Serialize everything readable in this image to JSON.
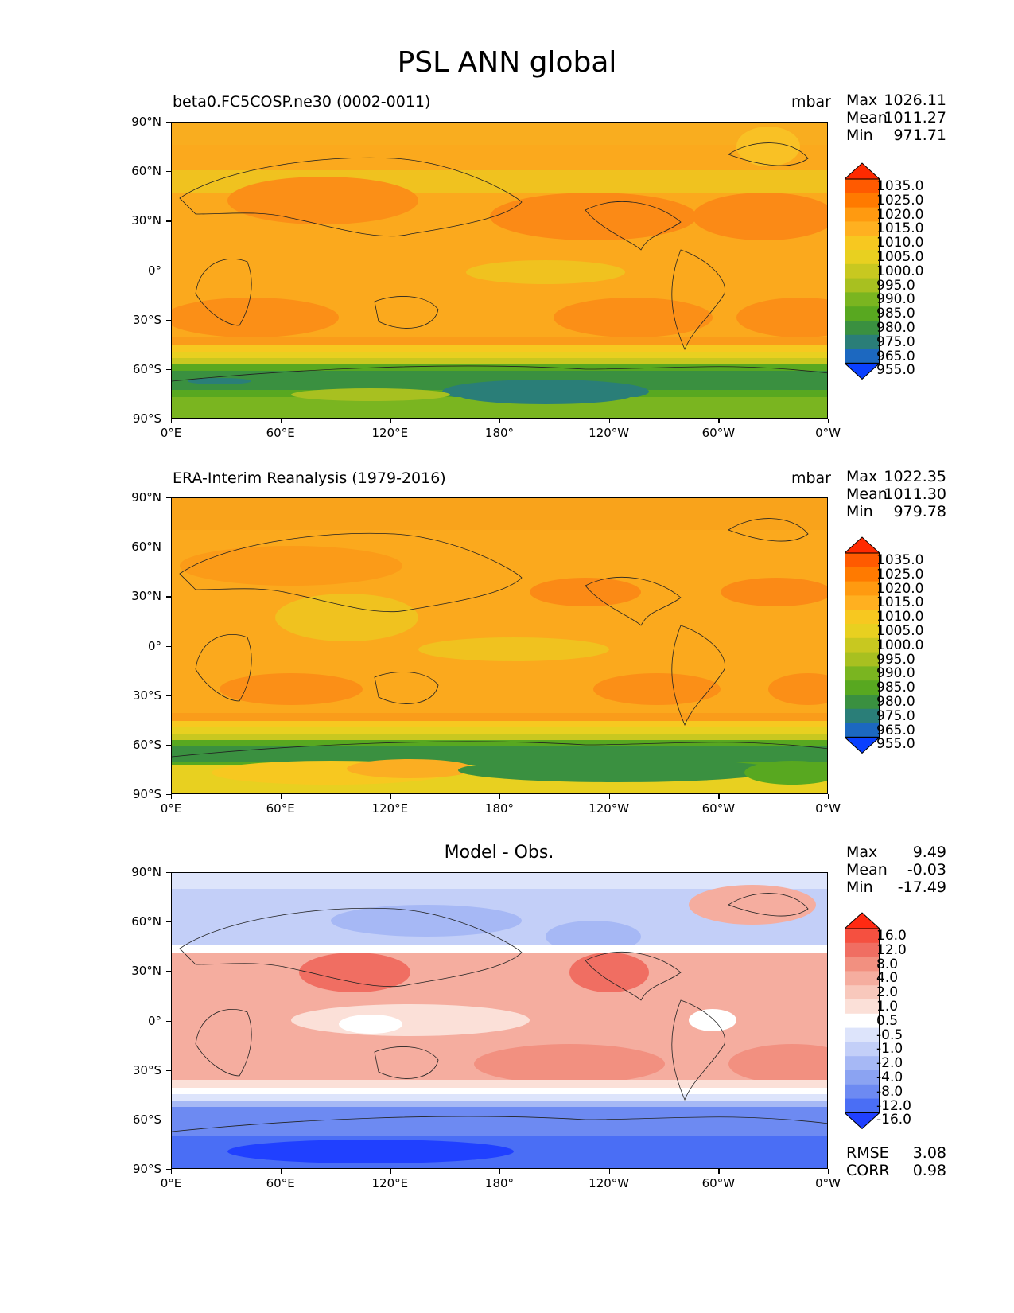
{
  "title": "PSL ANN global",
  "panels": [
    {
      "title_left": "beta0.FC5COSP.ne30 (0002-0011)",
      "title_center": "",
      "units": "mbar",
      "stats": [
        {
          "label": "Max",
          "value": "1026.11"
        },
        {
          "label": "Mean",
          "value": "1011.27"
        },
        {
          "label": "Min",
          "value": "971.71"
        }
      ]
    },
    {
      "title_left": "ERA-Interim Reanalysis (1979-2016)",
      "title_center": "",
      "units": "mbar",
      "stats": [
        {
          "label": "Max",
          "value": "1022.35"
        },
        {
          "label": "Mean",
          "value": "1011.30"
        },
        {
          "label": "Min",
          "value": "979.78"
        }
      ]
    },
    {
      "title_left": "",
      "title_center": "Model - Obs.",
      "units": "",
      "stats": [
        {
          "label": "Max",
          "value": "9.49"
        },
        {
          "label": "Mean",
          "value": "-0.03"
        },
        {
          "label": "Min",
          "value": "-17.49"
        }
      ],
      "extra_stats": [
        {
          "label": "RMSE",
          "value": "3.08"
        },
        {
          "label": "CORR",
          "value": "0.98"
        }
      ]
    }
  ],
  "chart_data": {
    "type": "heatmap",
    "x_ticks": [
      "0°E",
      "60°E",
      "120°E",
      "180°",
      "120°W",
      "60°W",
      "0°W"
    ],
    "y_ticks": [
      "90°N",
      "60°N",
      "30°N",
      "0°",
      "30°S",
      "60°S",
      "90°S"
    ],
    "colorbar_psl": {
      "levels": [
        "1035.0",
        "1025.0",
        "1020.0",
        "1015.0",
        "1010.0",
        "1005.0",
        "1000.0",
        "995.0",
        "990.0",
        "985.0",
        "980.0",
        "975.0",
        "965.0",
        "955.0"
      ],
      "colors": [
        "#ff2a00",
        "#ff5a00",
        "#ff7a00",
        "#ff9a10",
        "#ffb020",
        "#f7c820",
        "#e8d020",
        "#c8c820",
        "#a8c020",
        "#7ab520",
        "#58a820",
        "#3a9040",
        "#2a7e78",
        "#1c68c0",
        "#0a40ff"
      ]
    },
    "colorbar_diff": {
      "levels": [
        "16.0",
        "12.0",
        "8.0",
        "4.0",
        "2.0",
        "1.0",
        "0.5",
        "-0.5",
        "-1.0",
        "-2.0",
        "-4.0",
        "-8.0",
        "-12.0",
        "-16.0"
      ],
      "colors": [
        "#ff2a12",
        "#f55040",
        "#f06e62",
        "#f29080",
        "#f5ad9f",
        "#f8c8bc",
        "#fbe0d8",
        "#ffffff",
        "#dde4fb",
        "#c3cff8",
        "#a6b8f5",
        "#8ba3f2",
        "#6d8af2",
        "#4a6ef5",
        "#2040ff"
      ]
    }
  }
}
